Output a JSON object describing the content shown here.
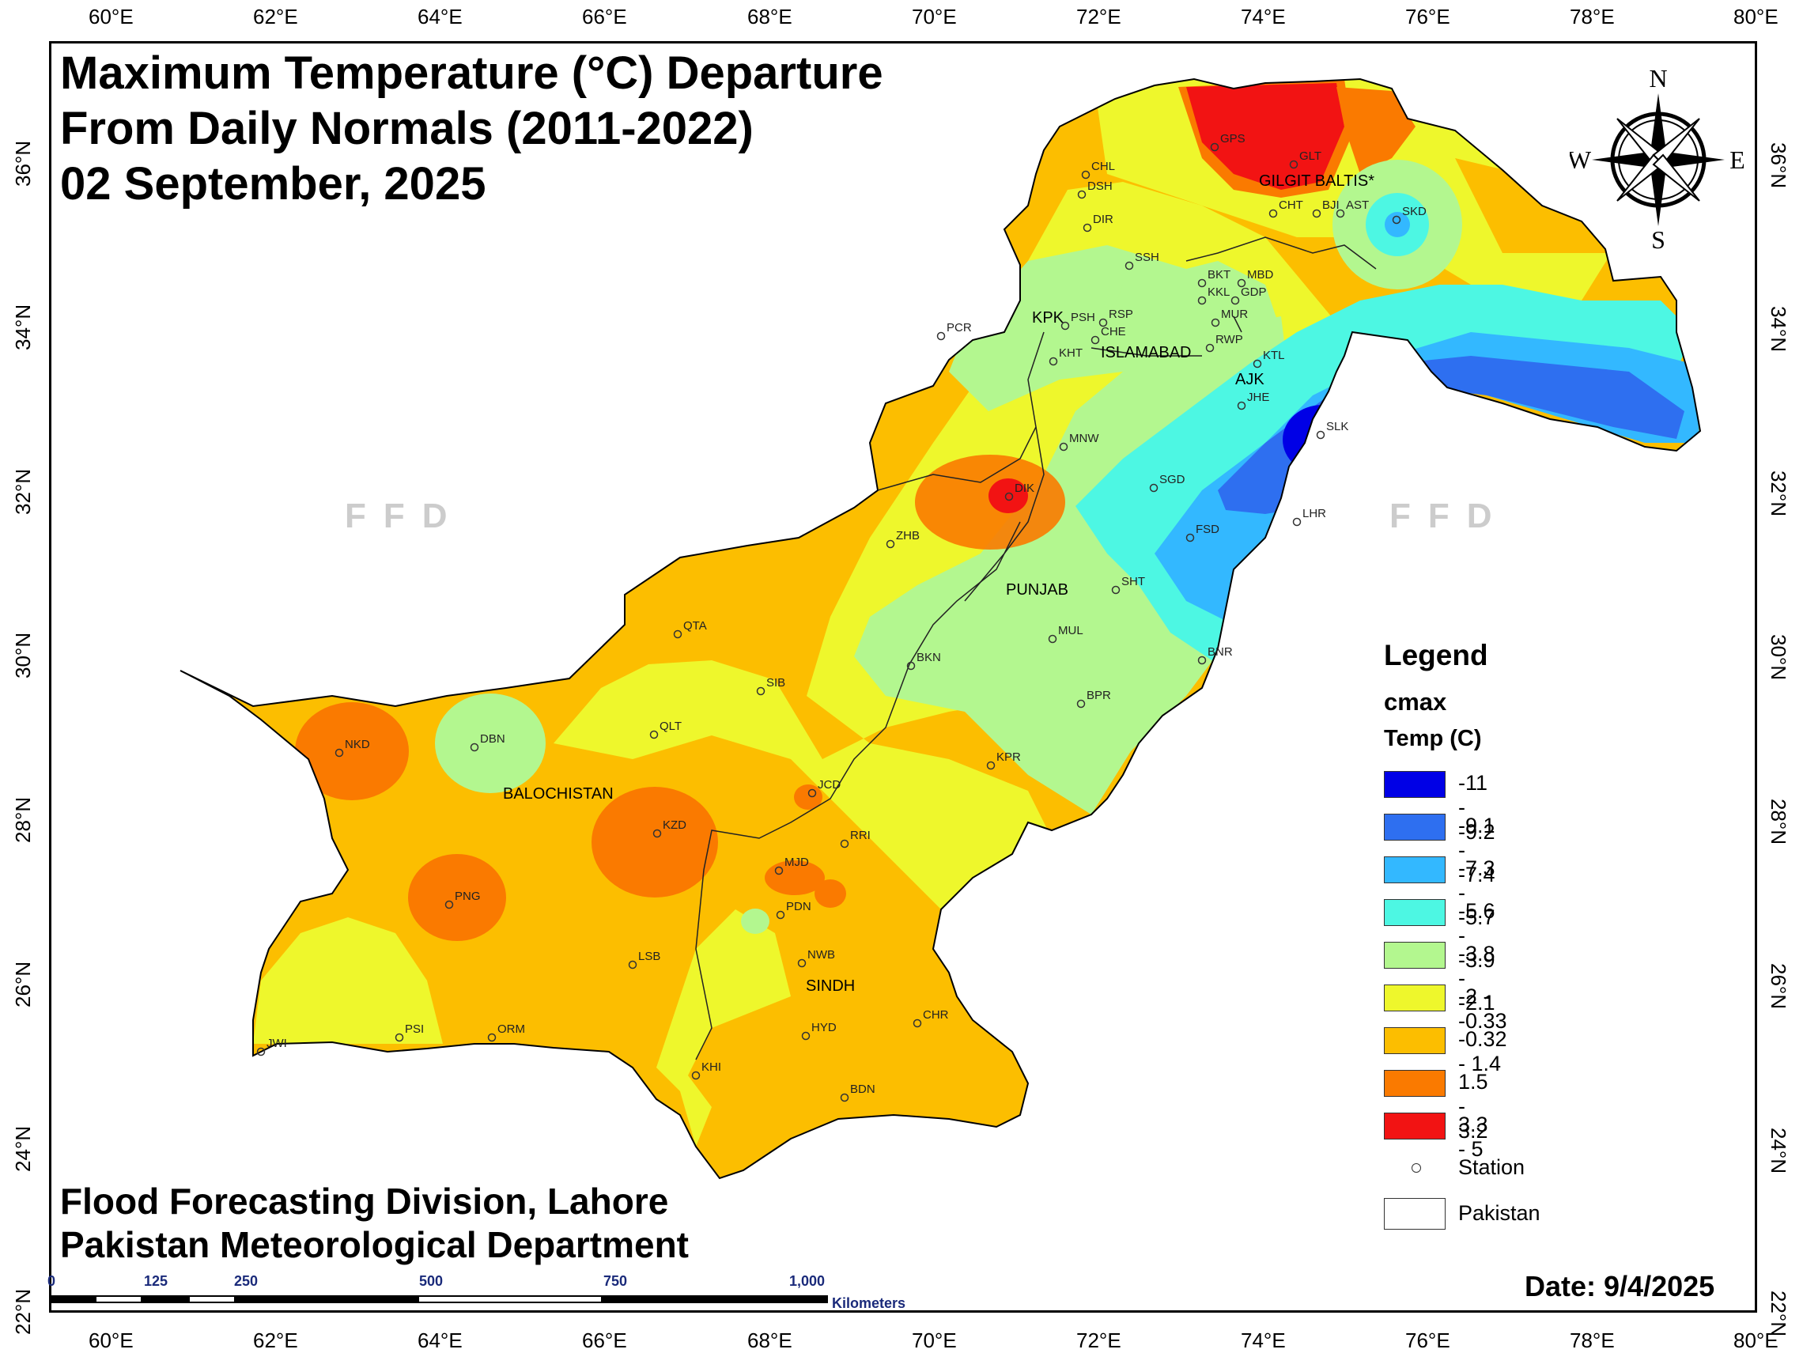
{
  "title_lines": [
    "Maximum Temperature (°C) Departure",
    "From Daily Normals (2011-2022)",
    "02 September, 2025"
  ],
  "footer_lines": [
    "Flood Forecasting Division, Lahore",
    "Pakistan Meteorological Department"
  ],
  "date": "Date: 9/4/2025",
  "watermark": "FFD",
  "lon_ticks": [
    "60°E",
    "62°E",
    "64°E",
    "66°E",
    "68°E",
    "70°E",
    "72°E",
    "74°E",
    "76°E",
    "78°E",
    "80°E"
  ],
  "lat_ticks": [
    "36°N",
    "34°N",
    "32°N",
    "30°N",
    "28°N",
    "26°N",
    "24°N",
    "22°N"
  ],
  "compass": {
    "n": "N",
    "s": "S",
    "e": "E",
    "w": "W"
  },
  "legend": {
    "title": "Legend",
    "layer": "cmax",
    "field": "Temp (C)",
    "classes": [
      {
        "label": "-11 - -9.2",
        "color": "#0000e6"
      },
      {
        "label": "-9.1 - -7.4",
        "color": "#2e6ff0"
      },
      {
        "label": "-7.3 - -5.7",
        "color": "#33b8ff"
      },
      {
        "label": "-5.6 - -3.9",
        "color": "#4df7e3"
      },
      {
        "label": "-3.8 - -2.1",
        "color": "#b3f78f"
      },
      {
        "label": "-2 - -0.33",
        "color": "#eef72c"
      },
      {
        "label": "-0.32 - 1.4",
        "color": "#fcbe00"
      },
      {
        "label": "1.5 - 3.2",
        "color": "#fa7a00"
      },
      {
        "label": "3.3 - 5",
        "color": "#f21313"
      }
    ],
    "station": "Station",
    "pakistan": "Pakistan"
  },
  "scale": {
    "ticks": [
      "0",
      "125",
      "250",
      "500",
      "750",
      "1,000"
    ],
    "unit": "Kilometers"
  },
  "regions": [
    "GILGIT BALTIS*",
    "KPK",
    "ISLAMABAD",
    "AJK",
    "PUNJAB",
    "BALOCHISTAN",
    "SINDH"
  ],
  "stations": [
    "GPS",
    "GLT",
    "CHL",
    "DSH",
    "DIR",
    "CHT",
    "BJI",
    "AST",
    "SKD",
    "SSH",
    "BKT",
    "MBD",
    "KKL",
    "GDP",
    "PSH",
    "RSP",
    "CHE",
    "MUR",
    "PCR",
    "KHT",
    "RWP",
    "KTL",
    "JHE",
    "MNW",
    "SLK",
    "SGD",
    "DIK",
    "ZHB",
    "FSD",
    "LHR",
    "SHT",
    "QTA",
    "MUL",
    "BKN",
    "BNR",
    "SIB",
    "BPR",
    "QLT",
    "NKD",
    "DBN",
    "KPR",
    "JCD",
    "KZD",
    "RRI",
    "MJD",
    "PNG",
    "PDN",
    "NWB",
    "LSB",
    "CHR",
    "HYD",
    "PSI",
    "ORM",
    "JWI",
    "KHI",
    "BDN"
  ]
}
